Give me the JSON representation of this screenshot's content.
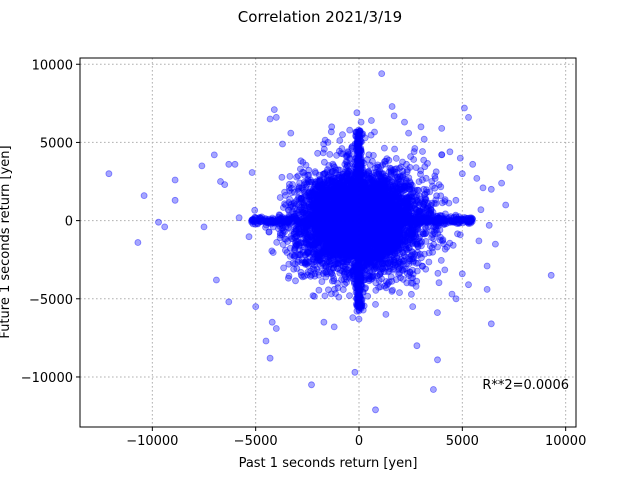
{
  "chart_data": {
    "type": "scatter",
    "title": "Correlation 2021/3/19",
    "xlabel": "Past 1 seconds return [yen]",
    "ylabel": "Future 1 seconds return [yen]",
    "xlim": [
      -13500,
      10500
    ],
    "ylim": [
      -13200,
      10400
    ],
    "xticks": [
      -10000,
      -5000,
      0,
      5000,
      10000
    ],
    "xtick_labels": [
      "−10000",
      "−5000",
      "0",
      "5000",
      "10000"
    ],
    "yticks": [
      -10000,
      -5000,
      0,
      5000,
      10000
    ],
    "ytick_labels": [
      "−10000",
      "−5000",
      "0",
      "5000",
      "10000"
    ],
    "grid": true,
    "annotation": "R**2=0.0006",
    "marker_color": "#0000ff",
    "marker_alpha": 0.35,
    "outlier_points": [
      [
        -12100,
        3000
      ],
      [
        -10700,
        -1400
      ],
      [
        -10400,
        1600
      ],
      [
        -9700,
        -100
      ],
      [
        -9400,
        -400
      ],
      [
        -8900,
        2600
      ],
      [
        -8900,
        1300
      ],
      [
        -7600,
        3500
      ],
      [
        -7500,
        -400
      ],
      [
        -7000,
        4200
      ],
      [
        -6700,
        2500
      ],
      [
        -6500,
        2300
      ],
      [
        -6300,
        3600
      ],
      [
        -6000,
        3600
      ],
      [
        -6300,
        -5200
      ],
      [
        -6900,
        -3800
      ],
      [
        -5000,
        -5500
      ],
      [
        -4500,
        -7700
      ],
      [
        -4300,
        -8800
      ],
      [
        -4200,
        -6500
      ],
      [
        -4000,
        -6900
      ],
      [
        -4000,
        6600
      ],
      [
        -4300,
        6500
      ],
      [
        -4100,
        7100
      ],
      [
        -3700,
        4900
      ],
      [
        -3300,
        5600
      ],
      [
        -2300,
        -10500
      ],
      [
        -1700,
        -6500
      ],
      [
        -1500,
        5000
      ],
      [
        -1200,
        -6800
      ],
      [
        -800,
        5500
      ],
      [
        -200,
        -9700
      ],
      [
        -300,
        -6200
      ],
      [
        -100,
        6900
      ],
      [
        0,
        -6300
      ],
      [
        100,
        6300
      ],
      [
        600,
        6400
      ],
      [
        800,
        -12100
      ],
      [
        1100,
        9400
      ],
      [
        1300,
        -6000
      ],
      [
        1600,
        7300
      ],
      [
        1700,
        6700
      ],
      [
        2200,
        6300
      ],
      [
        2400,
        5600
      ],
      [
        2600,
        -5500
      ],
      [
        2800,
        -8000
      ],
      [
        3000,
        6000
      ],
      [
        3600,
        -10800
      ],
      [
        3800,
        -8900
      ],
      [
        4000,
        5900
      ],
      [
        4000,
        4200
      ],
      [
        4400,
        4400
      ],
      [
        4500,
        -4700
      ],
      [
        4700,
        -5000
      ],
      [
        4900,
        4000
      ],
      [
        5000,
        3000
      ],
      [
        5000,
        -3400
      ],
      [
        5100,
        7200
      ],
      [
        5300,
        6600
      ],
      [
        5500,
        3600
      ],
      [
        5300,
        -4100
      ],
      [
        5700,
        2700
      ],
      [
        5800,
        -1300
      ],
      [
        6000,
        2100
      ],
      [
        6200,
        -2900
      ],
      [
        6200,
        -4400
      ],
      [
        6400,
        -6600
      ],
      [
        6600,
        -1500
      ],
      [
        6400,
        2000
      ],
      [
        6900,
        2400
      ],
      [
        7100,
        1000
      ],
      [
        7300,
        3400
      ],
      [
        6300,
        -300
      ],
      [
        5900,
        700
      ],
      [
        9300,
        -3500
      ]
    ],
    "dense_cluster": {
      "center": [
        0,
        0
      ],
      "std_x": 1500,
      "std_y": 1650,
      "count": 5500,
      "horizontal_band": {
        "x_range": [
          -5200,
          5500
        ],
        "y_std": 120,
        "count": 600
      },
      "vertical_band": {
        "y_range": [
          -5800,
          5800
        ],
        "x_std": 90,
        "count": 500
      }
    }
  }
}
